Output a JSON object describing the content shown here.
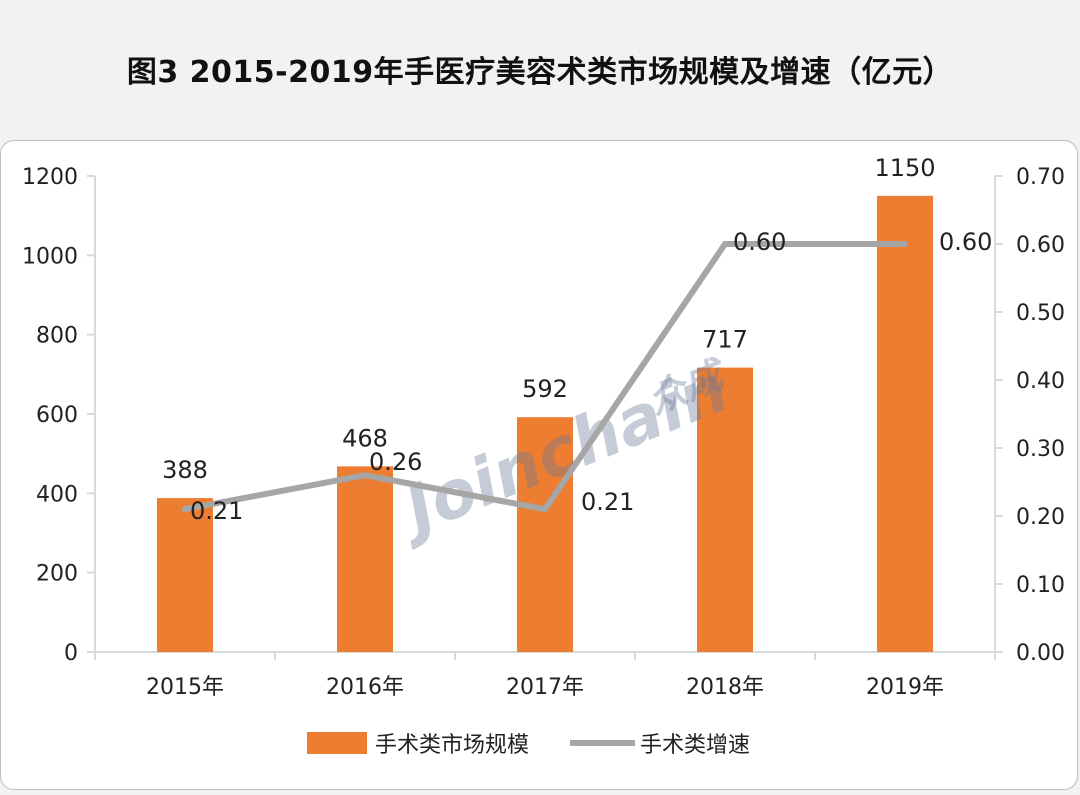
{
  "header": {
    "title": "图3  2015-2019年手医疗美容术类市场规模及增速（亿元）"
  },
  "watermark": {
    "text": "Joinchain",
    "suffix": "众成"
  },
  "colors": {
    "bar": "#ed7d31",
    "line": "#a6a6a6",
    "axis": "#d9d9d9",
    "text": "#222222"
  },
  "chart_data": {
    "type": "bar",
    "title": "",
    "categories": [
      "2015年",
      "2016年",
      "2017年",
      "2018年",
      "2019年"
    ],
    "series": [
      {
        "name": "手术类市场规模",
        "type": "bar",
        "axis": "left",
        "values": [
          388,
          468,
          592,
          717,
          1150
        ],
        "labels": [
          "388",
          "468",
          "592",
          "717",
          "1150"
        ]
      },
      {
        "name": "手术类增速",
        "type": "line",
        "axis": "right",
        "values": [
          0.21,
          0.26,
          0.21,
          0.6,
          0.6
        ],
        "labels": [
          "0.21",
          "0.26",
          "0.21",
          "0.60",
          "0.60"
        ]
      }
    ],
    "y_left": {
      "min": 0,
      "max": 1200,
      "ticks": [
        "0",
        "200",
        "400",
        "600",
        "800",
        "1000",
        "1200"
      ]
    },
    "y_right": {
      "min": 0,
      "max": 0.7,
      "ticks": [
        "0.00",
        "0.10",
        "0.20",
        "0.30",
        "0.40",
        "0.50",
        "0.60",
        "0.70"
      ]
    },
    "grid": false,
    "legend_position": "bottom"
  }
}
